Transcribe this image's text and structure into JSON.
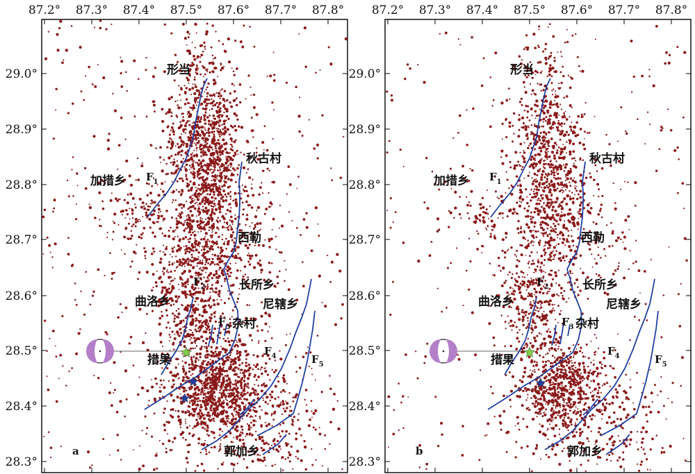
{
  "panels": [
    {
      "id": "a",
      "label": "a"
    },
    {
      "id": "b",
      "label": "b"
    }
  ],
  "axes": {
    "lon_ticks": [
      "87.2°",
      "87.3°",
      "87.4°",
      "87.5°",
      "87.6°",
      "87.7°",
      "87.8°"
    ],
    "lat_ticks": [
      "29.0°",
      "28.9°",
      "28.8°",
      "28.7°",
      "28.6°",
      "28.5°",
      "28.4°",
      "28.3°"
    ]
  },
  "places": {
    "xingdang": "形当",
    "qiugucun": "秋古村",
    "jiacuoxiang": "加措乡",
    "xile": "西勒",
    "changsuoxiang": "长所乡",
    "quluoxiang": "曲洛乡",
    "nixiaxiang": "尼辖乡",
    "zacun": "杂村",
    "cuoguo": "措果",
    "guojiaxiang": "郭加乡"
  },
  "faults": [
    {
      "main": "F",
      "sub": "1"
    },
    {
      "main": "F",
      "sub": "2"
    },
    {
      "main": "F",
      "sub": "3"
    },
    {
      "main": "F",
      "sub": "4"
    },
    {
      "main": "F",
      "sub": "5"
    }
  ],
  "colors": {
    "quake": "#8b1a1a",
    "fault": "#1f3fa0",
    "epicenter_star": "#7fd04a",
    "aftershock_star": "#1f3fa0",
    "focal_mechanism": "#b27fc8"
  }
}
